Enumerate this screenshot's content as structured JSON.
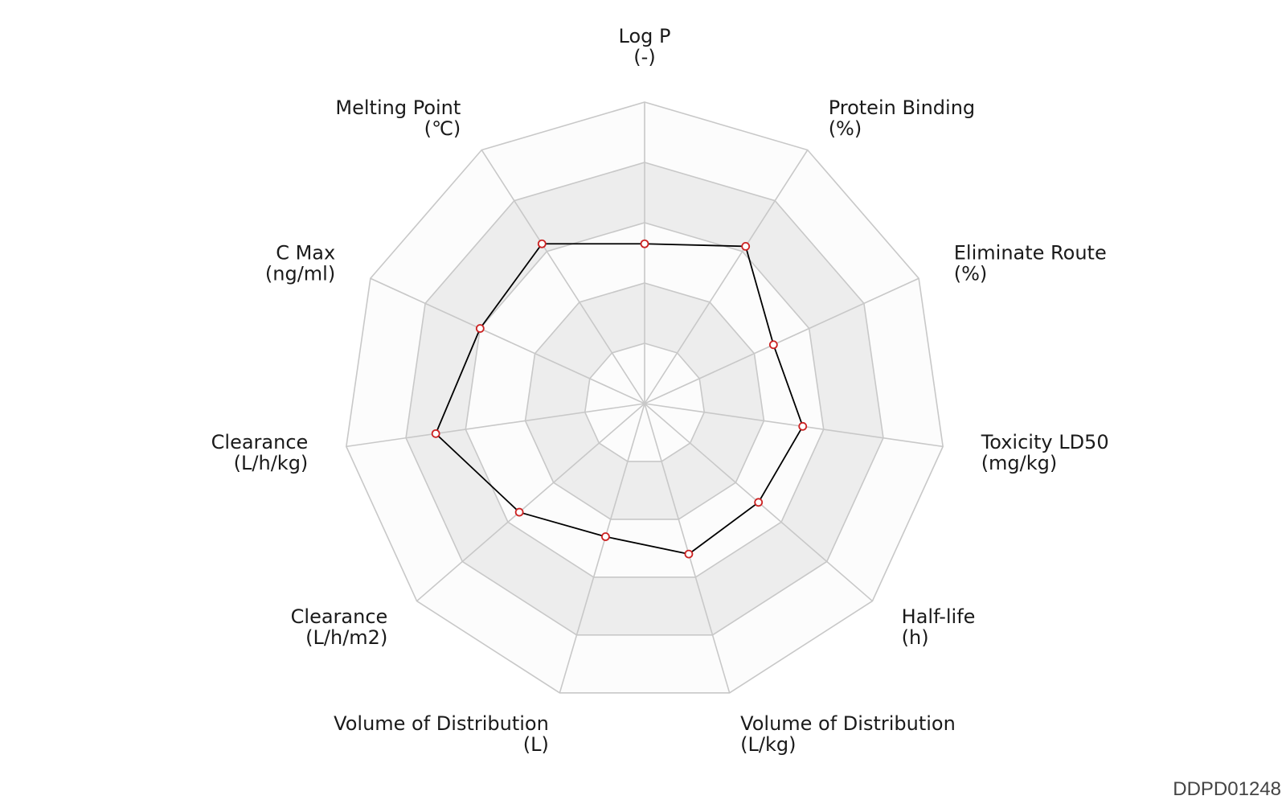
{
  "chart_data": {
    "type": "radar",
    "axes": [
      {
        "name": "Log P",
        "unit": "(-)",
        "value": 0.53
      },
      {
        "name": "Protein Binding",
        "unit": "(%)",
        "value": 0.62
      },
      {
        "name": "Eliminate Route",
        "unit": "(%)",
        "value": 0.47
      },
      {
        "name": "Toxicity LD50",
        "unit": "(mg/kg)",
        "value": 0.53
      },
      {
        "name": "Half-life",
        "unit": "(h)",
        "value": 0.5
      },
      {
        "name": "Volume of Distribution",
        "unit": "(L/kg)",
        "value": 0.52
      },
      {
        "name": "Volume of Distribution",
        "unit": "(L)",
        "value": 0.46
      },
      {
        "name": "Clearance",
        "unit": "(L/h/m2)",
        "value": 0.55
      },
      {
        "name": "Clearance",
        "unit": "(L/h/kg)",
        "value": 0.7
      },
      {
        "name": "C Max",
        "unit": "(ng/ml)",
        "value": 0.6
      },
      {
        "name": "Melting Point",
        "unit": "(℃)",
        "value": 0.63
      }
    ],
    "range": [
      0,
      1
    ],
    "rings": 5,
    "colors": {
      "series_line": "#000000",
      "point_stroke": "#cc2222",
      "point_fill": "#ffffff",
      "grid_line": "#c8c8c8",
      "band_shaded": "#ededed",
      "band_light": "#fcfcfc"
    }
  },
  "footer": {
    "id_label": "DDPD01248"
  }
}
